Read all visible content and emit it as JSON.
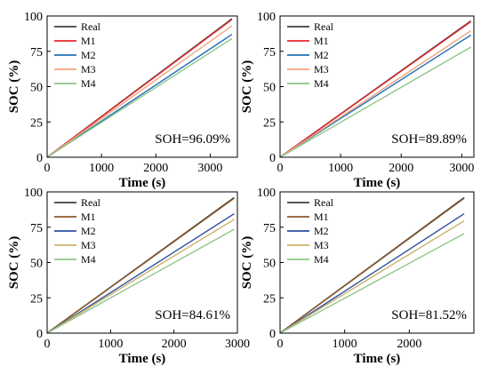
{
  "chart_data": [
    {
      "type": "line",
      "xlabel": "Time (s)",
      "ylabel": "SOC (%)",
      "xlim": [
        0,
        3500
      ],
      "ylim": [
        0,
        100
      ],
      "xticks": [
        0,
        1000,
        2000,
        3000
      ],
      "yticks": [
        0,
        25,
        50,
        75,
        100
      ],
      "legend_position": "top-left",
      "annotation": "SOH=96.09%",
      "series": [
        {
          "name": "Real",
          "color": "#404040",
          "x": [
            0,
            3400
          ],
          "y": [
            0,
            98
          ]
        },
        {
          "name": "M1",
          "color": "#e8262b",
          "x": [
            0,
            3400
          ],
          "y": [
            0,
            97.5
          ]
        },
        {
          "name": "M2",
          "color": "#1f6fb5",
          "x": [
            0,
            3400
          ],
          "y": [
            0,
            87
          ]
        },
        {
          "name": "M3",
          "color": "#f4a37a",
          "x": [
            0,
            3400
          ],
          "y": [
            0,
            93
          ]
        },
        {
          "name": "M4",
          "color": "#8fc58a",
          "x": [
            0,
            3400
          ],
          "y": [
            0,
            84
          ]
        }
      ]
    },
    {
      "type": "line",
      "xlabel": "Time (s)",
      "ylabel": "SOC (%)",
      "xlim": [
        0,
        3200
      ],
      "ylim": [
        0,
        100
      ],
      "xticks": [
        0,
        1000,
        2000,
        3000
      ],
      "yticks": [
        0,
        25,
        50,
        75,
        100
      ],
      "legend_position": "top-left",
      "annotation": "SOH=89.89%",
      "series": [
        {
          "name": "Real",
          "color": "#404040",
          "x": [
            0,
            3150
          ],
          "y": [
            0,
            96.5
          ]
        },
        {
          "name": "M1",
          "color": "#e8262b",
          "x": [
            0,
            3150
          ],
          "y": [
            0,
            96
          ]
        },
        {
          "name": "M2",
          "color": "#1f6fb5",
          "x": [
            0,
            3150
          ],
          "y": [
            0,
            86.5
          ]
        },
        {
          "name": "M3",
          "color": "#f4a37a",
          "x": [
            0,
            3150
          ],
          "y": [
            0,
            89.5
          ]
        },
        {
          "name": "M4",
          "color": "#8fc58a",
          "x": [
            0,
            3150
          ],
          "y": [
            0,
            78
          ]
        }
      ]
    },
    {
      "type": "line",
      "xlabel": "Time (s)",
      "ylabel": "SOC (%)",
      "xlim": [
        0,
        3000
      ],
      "ylim": [
        0,
        100
      ],
      "xticks": [
        0,
        1000,
        2000,
        3000
      ],
      "yticks": [
        0,
        25,
        50,
        75,
        100
      ],
      "legend_position": "top-left",
      "annotation": "SOH=84.61%",
      "series": [
        {
          "name": "Real",
          "color": "#404040",
          "x": [
            0,
            2950
          ],
          "y": [
            0,
            96
          ]
        },
        {
          "name": "M1",
          "color": "#8b5a2b",
          "x": [
            0,
            2950
          ],
          "y": [
            0,
            95.5
          ]
        },
        {
          "name": "M2",
          "color": "#2f4fa0",
          "x": [
            0,
            2950
          ],
          "y": [
            0,
            84.5
          ]
        },
        {
          "name": "M3",
          "color": "#c9b26b",
          "x": [
            0,
            2950
          ],
          "y": [
            0,
            80.5
          ]
        },
        {
          "name": "M4",
          "color": "#8fc58a",
          "x": [
            0,
            2950
          ],
          "y": [
            0,
            73.5
          ]
        }
      ]
    },
    {
      "type": "line",
      "xlabel": "Time (s)",
      "ylabel": "SOC (%)",
      "xlim": [
        0,
        3000
      ],
      "ylim": [
        0,
        100
      ],
      "xticks": [
        0,
        1000,
        2000
      ],
      "yticks": [
        0,
        25,
        50,
        75,
        100
      ],
      "legend_position": "top-left",
      "annotation": "SOH=81.52%",
      "series": [
        {
          "name": "Real",
          "color": "#404040",
          "x": [
            0,
            2850
          ],
          "y": [
            0,
            96
          ]
        },
        {
          "name": "M1",
          "color": "#8b5a2b",
          "x": [
            0,
            2850
          ],
          "y": [
            0,
            95.5
          ]
        },
        {
          "name": "M2",
          "color": "#2f4fa0",
          "x": [
            0,
            2850
          ],
          "y": [
            0,
            84.5
          ]
        },
        {
          "name": "M3",
          "color": "#c9b26b",
          "x": [
            0,
            2850
          ],
          "y": [
            0,
            79.5
          ]
        },
        {
          "name": "M4",
          "color": "#8fc58a",
          "x": [
            0,
            2850
          ],
          "y": [
            0,
            70.5
          ]
        }
      ]
    }
  ]
}
